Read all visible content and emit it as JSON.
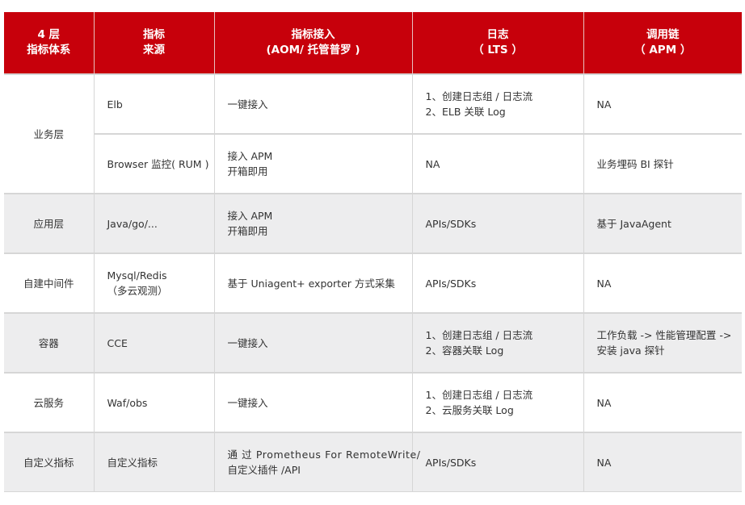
{
  "headers": [
    [
      "4 层",
      "指标体系"
    ],
    [
      "指标",
      "来源"
    ],
    [
      "指标接入",
      "(AOM/ 托管普罗 )"
    ],
    [
      "日志",
      "（ LTS ）"
    ],
    [
      "调用链",
      "（ APM ）"
    ]
  ],
  "rows": [
    {
      "layer": "业务层",
      "source": [
        "Elb"
      ],
      "metric": [
        "一键接入"
      ],
      "log": [
        "1、创建日志组 / 日志流",
        "2、ELB 关联 Log"
      ],
      "trace": [
        "NA"
      ]
    },
    {
      "source": [
        "Browser 监控( RUM )"
      ],
      "metric": [
        "接入 APM",
        "开箱即用"
      ],
      "log": [
        "NA"
      ],
      "trace": [
        "业务埋码 BI 探针"
      ]
    },
    {
      "layer": "应用层",
      "source": [
        "Java/go/..."
      ],
      "metric": [
        "接入 APM",
        "开箱即用"
      ],
      "log": [
        "APIs/SDKs"
      ],
      "trace": [
        "基于 JavaAgent"
      ]
    },
    {
      "layer": "自建中间件",
      "source": [
        "Mysql/Redis",
        "（多云观测）"
      ],
      "metric": [
        "基于 Uniagent+ exporter 方式采集"
      ],
      "log": [
        "APIs/SDKs"
      ],
      "trace": [
        "NA"
      ]
    },
    {
      "layer": "容器",
      "source": [
        "CCE"
      ],
      "metric": [
        "一键接入"
      ],
      "log": [
        "1、创建日志组 / 日志流",
        "2、容器关联 Log"
      ],
      "trace": [
        "工作负载 -> 性能管理配置 ->",
        "安装 java 探针"
      ]
    },
    {
      "layer": "云服务",
      "source": [
        "Waf/obs"
      ],
      "metric": [
        "一键接入"
      ],
      "log": [
        "1、创建日志组 / 日志流",
        "2、云服务关联 Log"
      ],
      "trace": [
        "NA"
      ]
    },
    {
      "layer": "自定义指标",
      "source": [
        "自定义指标"
      ],
      "metric": [
        "通 过 Prometheus For RemoteWrite/",
        "自定义插件 /API"
      ],
      "log": [
        "APIs/SDKs"
      ],
      "trace": [
        "NA"
      ]
    }
  ],
  "colors": {
    "header_bg": "#c7000b",
    "alt_row_bg": "#ededee"
  }
}
